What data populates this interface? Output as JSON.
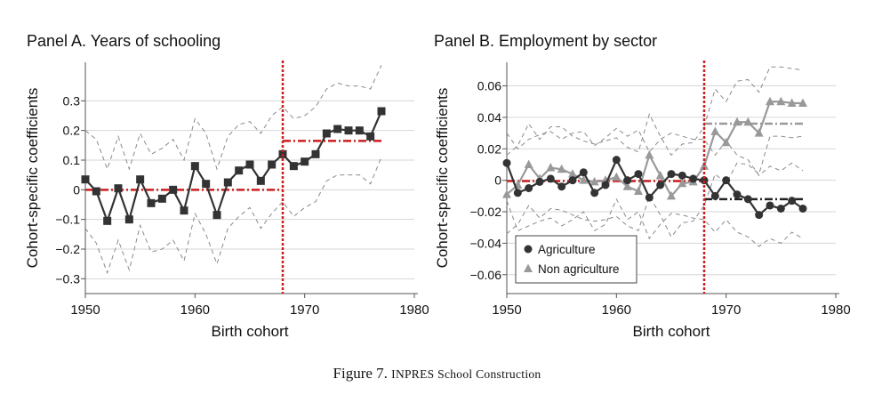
{
  "figure": {
    "caption_prefix": "Figure 7.",
    "caption_title": "INPRES School Construction"
  },
  "colors": {
    "series_dark": "#333333",
    "series_gray": "#999999",
    "ci": "#8a8a8a",
    "policy_line": "#cc1f1f",
    "grid": "#d6d6d6",
    "axis": "#555555"
  },
  "chart_data": [
    {
      "type": "line",
      "title": "Panel A. Years of schooling",
      "xlabel": "Birth cohort",
      "ylabel": "Cohort-specific coefficients",
      "xlim": [
        1950,
        1980
      ],
      "ylim": [
        -0.35,
        0.43
      ],
      "x_ticks": [
        1950,
        1960,
        1970,
        1980
      ],
      "x_tick_labels": [
        "1950",
        "1960",
        "1970",
        "1980"
      ],
      "y_ticks": [
        -0.3,
        -0.2,
        -0.1,
        0,
        0.1,
        0.2,
        0.3
      ],
      "y_tick_labels": [
        "−0.3",
        "−0.2",
        "−0.1",
        "0",
        "0.1",
        "0.2",
        "0.3"
      ],
      "grid": true,
      "vline_x": 1968,
      "x": [
        1950,
        1951,
        1952,
        1953,
        1954,
        1955,
        1956,
        1957,
        1958,
        1959,
        1960,
        1961,
        1962,
        1963,
        1964,
        1965,
        1966,
        1967,
        1968,
        1969,
        1970,
        1971,
        1972,
        1973,
        1974,
        1975,
        1976,
        1977
      ],
      "series": [
        {
          "name": "",
          "marker": "square",
          "values": [
            0.035,
            -0.005,
            -0.105,
            0.005,
            -0.1,
            0.035,
            -0.045,
            -0.03,
            0.0,
            -0.07,
            0.08,
            0.02,
            -0.085,
            0.025,
            0.065,
            0.085,
            0.03,
            0.085,
            0.12,
            0.08,
            0.095,
            0.12,
            0.19,
            0.205,
            0.2,
            0.2,
            0.18,
            0.265
          ],
          "ci_upper": [
            0.2,
            0.17,
            0.07,
            0.18,
            0.07,
            0.19,
            0.12,
            0.14,
            0.17,
            0.1,
            0.24,
            0.19,
            0.07,
            0.18,
            0.22,
            0.23,
            0.19,
            0.25,
            0.28,
            0.24,
            0.25,
            0.28,
            0.34,
            0.36,
            0.35,
            0.35,
            0.34,
            0.42
          ],
          "ci_lower": [
            -0.13,
            -0.18,
            -0.28,
            -0.17,
            -0.27,
            -0.12,
            -0.21,
            -0.2,
            -0.17,
            -0.24,
            -0.08,
            -0.15,
            -0.25,
            -0.13,
            -0.09,
            -0.06,
            -0.13,
            -0.08,
            -0.04,
            -0.09,
            -0.06,
            -0.04,
            0.03,
            0.05,
            0.05,
            0.05,
            0.02,
            0.11
          ]
        }
      ],
      "segments": [
        {
          "x": [
            1950,
            1968
          ],
          "y": 0.0,
          "style": "dash-dot",
          "color": "#cc1f1f"
        },
        {
          "x": [
            1968,
            1977
          ],
          "y": 0.165,
          "style": "dash-dot",
          "color": "#cc1f1f"
        }
      ]
    },
    {
      "type": "line",
      "title": "Panel B. Employment by sector",
      "xlabel": "Birth cohort",
      "ylabel": "Cohort-specific coefficients",
      "xlim": [
        1950,
        1980
      ],
      "ylim": [
        -0.072,
        0.075
      ],
      "x_ticks": [
        1950,
        1960,
        1970,
        1980
      ],
      "x_tick_labels": [
        "1950",
        "1960",
        "1970",
        "1980"
      ],
      "y_ticks": [
        -0.06,
        -0.04,
        -0.02,
        0,
        0.02,
        0.04,
        0.06
      ],
      "y_tick_labels": [
        "−0.06",
        "−0.04",
        "−0.02",
        "0",
        "0.02",
        "0.04",
        "0.06"
      ],
      "grid": true,
      "vline_x": 1968,
      "legend_position": "bottom-left",
      "x": [
        1950,
        1951,
        1952,
        1953,
        1954,
        1955,
        1956,
        1957,
        1958,
        1959,
        1960,
        1961,
        1962,
        1963,
        1964,
        1965,
        1966,
        1967,
        1968,
        1969,
        1970,
        1971,
        1972,
        1973,
        1974,
        1975,
        1976,
        1977
      ],
      "series": [
        {
          "name": "Agriculture",
          "marker": "circle",
          "values": [
            0.011,
            -0.008,
            -0.005,
            -0.001,
            0.001,
            -0.004,
            0.0,
            0.005,
            -0.008,
            -0.003,
            0.013,
            0.0,
            0.004,
            -0.011,
            -0.003,
            0.004,
            0.003,
            0.001,
            0.0,
            -0.01,
            0.0,
            -0.009,
            -0.012,
            -0.022,
            -0.016,
            -0.018,
            -0.013,
            -0.018
          ],
          "ci_upper": [
            0.03,
            0.02,
            0.026,
            0.029,
            0.031,
            0.026,
            0.03,
            0.031,
            0.022,
            0.027,
            0.033,
            0.028,
            0.032,
            0.018,
            0.026,
            0.03,
            0.028,
            0.026,
            0.026,
            0.016,
            0.025,
            0.016,
            0.013,
            0.003,
            0.009,
            0.006,
            0.011,
            0.006
          ],
          "ci_lower": [
            -0.013,
            -0.032,
            -0.029,
            -0.026,
            -0.024,
            -0.029,
            -0.025,
            -0.02,
            -0.032,
            -0.028,
            -0.012,
            -0.025,
            -0.02,
            -0.037,
            -0.028,
            -0.021,
            -0.022,
            -0.024,
            -0.025,
            -0.033,
            -0.025,
            -0.033,
            -0.036,
            -0.042,
            -0.037,
            -0.04,
            -0.033,
            -0.037
          ]
        },
        {
          "name": "Non agriculture",
          "marker": "triangle",
          "values": [
            -0.009,
            -0.003,
            0.01,
            0.001,
            0.008,
            0.007,
            0.004,
            0.0,
            -0.001,
            0.0,
            0.002,
            -0.004,
            -0.007,
            0.016,
            0.003,
            -0.01,
            -0.002,
            -0.001,
            0.009,
            0.031,
            0.024,
            0.037,
            0.037,
            0.03,
            0.05,
            0.05,
            0.049,
            0.049
          ],
          "ci_upper": [
            0.016,
            0.022,
            0.036,
            0.026,
            0.034,
            0.034,
            0.028,
            0.025,
            0.023,
            0.025,
            0.027,
            0.021,
            0.018,
            0.042,
            0.028,
            0.016,
            0.023,
            0.024,
            0.034,
            0.058,
            0.05,
            0.063,
            0.064,
            0.056,
            0.072,
            0.072,
            0.071,
            0.07
          ],
          "ci_lower": [
            -0.034,
            -0.028,
            -0.016,
            -0.024,
            -0.018,
            -0.019,
            -0.022,
            -0.025,
            -0.026,
            -0.025,
            -0.023,
            -0.029,
            -0.032,
            -0.01,
            -0.022,
            -0.036,
            -0.027,
            -0.026,
            -0.016,
            0.004,
            -0.002,
            0.011,
            0.01,
            0.004,
            0.028,
            0.028,
            0.027,
            0.028
          ]
        }
      ],
      "segments": [
        {
          "x": [
            1950,
            1968
          ],
          "y": -0.0005,
          "style": "dash-dot",
          "color": "#cc1f1f"
        },
        {
          "x": [
            1968,
            1977
          ],
          "y": 0.036,
          "style": "dash-dot",
          "color": "#999999"
        },
        {
          "x": [
            1968,
            1977
          ],
          "y": -0.012,
          "style": "dash-dot",
          "color": "#222222"
        }
      ]
    }
  ]
}
